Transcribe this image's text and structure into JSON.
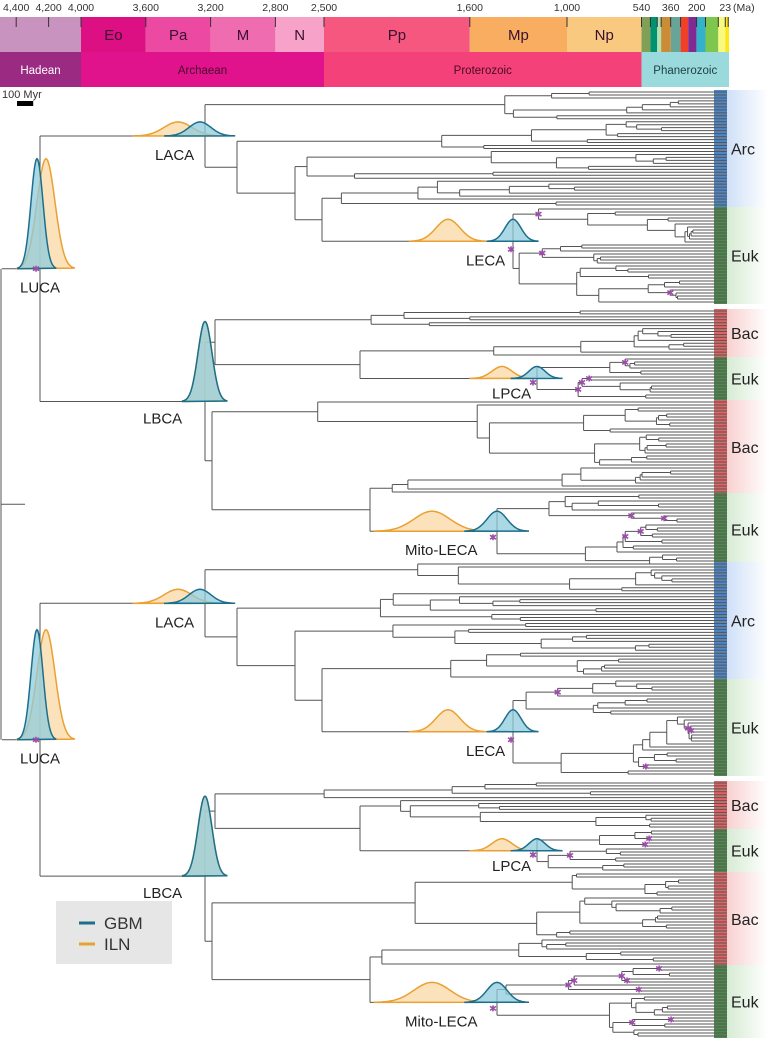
{
  "timescale": {
    "unit_label": "(Ma)",
    "tick_labels": [
      {
        "ma": 4400,
        "text": "4,400"
      },
      {
        "ma": 4200,
        "text": "4,200"
      },
      {
        "ma": 4000,
        "text": "4,000"
      },
      {
        "ma": 3600,
        "text": "3,600"
      },
      {
        "ma": 3200,
        "text": "3,200"
      },
      {
        "ma": 2800,
        "text": "2,800"
      },
      {
        "ma": 2500,
        "text": "2,500"
      },
      {
        "ma": 1600,
        "text": "1,600"
      },
      {
        "ma": 1000,
        "text": "1,000"
      },
      {
        "ma": 540,
        "text": "540"
      },
      {
        "ma": 360,
        "text": "360"
      },
      {
        "ma": 200,
        "text": "200"
      },
      {
        "ma": 23,
        "text": "23"
      }
    ],
    "periods": [
      {
        "label": "",
        "from": 4560,
        "to": 4000,
        "color": "#c993bf"
      },
      {
        "label": "Eo",
        "from": 4000,
        "to": 3600,
        "color": "#dc0f83"
      },
      {
        "label": "Pa",
        "from": 3600,
        "to": 3200,
        "color": "#ec4aa2"
      },
      {
        "label": "M",
        "from": 3200,
        "to": 2800,
        "color": "#f06cb0"
      },
      {
        "label": "N",
        "from": 2800,
        "to": 2500,
        "color": "#f7a2c8"
      },
      {
        "label": "Pp",
        "from": 2500,
        "to": 1600,
        "color": "#f6577f"
      },
      {
        "label": "Mp",
        "from": 1600,
        "to": 1000,
        "color": "#f8ad60"
      },
      {
        "label": "Np",
        "from": 1000,
        "to": 540,
        "color": "#f8c97e"
      },
      {
        "label": "",
        "from": 540,
        "to": 485,
        "color": "#7fa056"
      },
      {
        "label": "",
        "from": 485,
        "to": 443,
        "color": "#009270"
      },
      {
        "label": "",
        "from": 443,
        "to": 419,
        "color": "#b3e1b6"
      },
      {
        "label": "",
        "from": 419,
        "to": 359,
        "color": "#cb8c37"
      },
      {
        "label": "",
        "from": 359,
        "to": 299,
        "color": "#67a599"
      },
      {
        "label": "",
        "from": 299,
        "to": 252,
        "color": "#f04028"
      },
      {
        "label": "",
        "from": 252,
        "to": 201,
        "color": "#812b92"
      },
      {
        "label": "",
        "from": 201,
        "to": 145,
        "color": "#34b2c9"
      },
      {
        "label": "",
        "from": 145,
        "to": 66,
        "color": "#7fc64e"
      },
      {
        "label": "",
        "from": 66,
        "to": 23,
        "color": "#f9f97f"
      },
      {
        "label": "",
        "from": 23,
        "to": 0,
        "color": "#ffe619"
      }
    ],
    "eons": [
      {
        "label": "Hadean",
        "from": 4560,
        "to": 4000,
        "color": "#9b2a83",
        "text_color": "#ffffff"
      },
      {
        "label": "Archaean",
        "from": 4000,
        "to": 2500,
        "color": "#e0138c",
        "text_color": "#4a0a30"
      },
      {
        "label": "Proterozoic",
        "from": 2500,
        "to": 540,
        "color": "#f4417a",
        "text_color": "#4a0a20"
      },
      {
        "label": "Phanerozoic",
        "from": 540,
        "to": 0,
        "color": "#9ad9dc",
        "text_color": "#1d3f44"
      }
    ]
  },
  "scale_bar": {
    "label": "100 Myr",
    "value_myr": 100
  },
  "node_labels": {
    "luca": "LUCA",
    "laca": "LACA",
    "leca": "LECA",
    "lbca": "LBCA",
    "lpca": "LPCA",
    "mito_leca": "Mito-LECA"
  },
  "groups": [
    {
      "key": "arc",
      "label": "Arc",
      "strip_color": "#4f86c6",
      "bg_color": "#cfe0f8"
    },
    {
      "key": "euk",
      "label": "Euk",
      "strip_color": "#4b8a4b",
      "bg_color": "#d6ebd3"
    },
    {
      "key": "bac",
      "label": "Bac",
      "strip_color": "#e06464",
      "bg_color": "#f9d0d0"
    },
    {
      "key": "euk",
      "label": "Euk",
      "strip_color": "#4b8a4b",
      "bg_color": "#d6ebd3"
    },
    {
      "key": "bac",
      "label": "Bac",
      "strip_color": "#e06464",
      "bg_color": "#f9d0d0"
    },
    {
      "key": "euk",
      "label": "Euk",
      "strip_color": "#4b8a4b",
      "bg_color": "#d6ebd3"
    }
  ],
  "legend": {
    "items": [
      {
        "label": "GBM",
        "color": "#1c6f8c",
        "fill": "#8fcbdc"
      },
      {
        "label": "ILN",
        "color": "#eaa032",
        "fill": "#fbd8a4"
      }
    ],
    "background": "#e6e6e6"
  },
  "colors": {
    "branch": "#555555",
    "calibration_marker": "#9b4fa8"
  }
}
